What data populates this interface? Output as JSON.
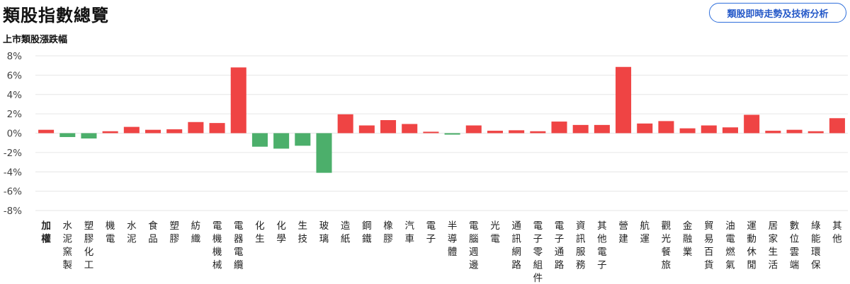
{
  "header": {
    "title": "類股指數總覽",
    "action_label": "類股即時走勢及技術分析"
  },
  "colors": {
    "up": "#ef4444",
    "down": "#4caf6b",
    "grid": "#e6e6e6",
    "accent": "#2f6fdb"
  },
  "chart_data": {
    "type": "bar",
    "title": "上市類股漲跌幅",
    "xlabel": "",
    "ylabel": "",
    "ylim": [
      -8,
      8
    ],
    "yticks": [
      8,
      6,
      4,
      2,
      0,
      -2,
      -4,
      -6,
      -8
    ],
    "ytick_labels": [
      "8%",
      "6%",
      "4%",
      "2%",
      "0%",
      "-2%",
      "-4%",
      "-6%",
      "-8%"
    ],
    "grid": true,
    "categories": [
      "加權",
      "水泥窯製",
      "塑膠化工",
      "機電",
      "水泥",
      "食品",
      "塑膠",
      "紡織",
      "電機機械",
      "電器電纜",
      "化生",
      "化學",
      "生技",
      "玻璃",
      "造紙",
      "鋼鐵",
      "橡膠",
      "汽車",
      "電子",
      "半導體",
      "電腦週邊",
      "光電",
      "通訊網路",
      "電子零組件",
      "電子通路",
      "資訊服務",
      "其他電子",
      "營建",
      "航運",
      "觀光餐旅",
      "金融業",
      "貿易百貨",
      "油電燃氣",
      "運動休閒",
      "居家生活",
      "數位雲端",
      "綠能環保",
      "其他"
    ],
    "values": [
      0.35,
      -0.4,
      -0.55,
      0.2,
      0.65,
      0.35,
      0.4,
      1.15,
      1.05,
      6.8,
      -1.4,
      -1.6,
      -1.3,
      -4.1,
      1.95,
      0.8,
      1.35,
      0.95,
      0.15,
      -0.15,
      0.8,
      0.25,
      0.3,
      0.2,
      1.2,
      0.85,
      0.85,
      6.85,
      1.0,
      1.25,
      0.5,
      0.8,
      0.6,
      1.9,
      0.25,
      0.35,
      0.2,
      1.55
    ]
  }
}
